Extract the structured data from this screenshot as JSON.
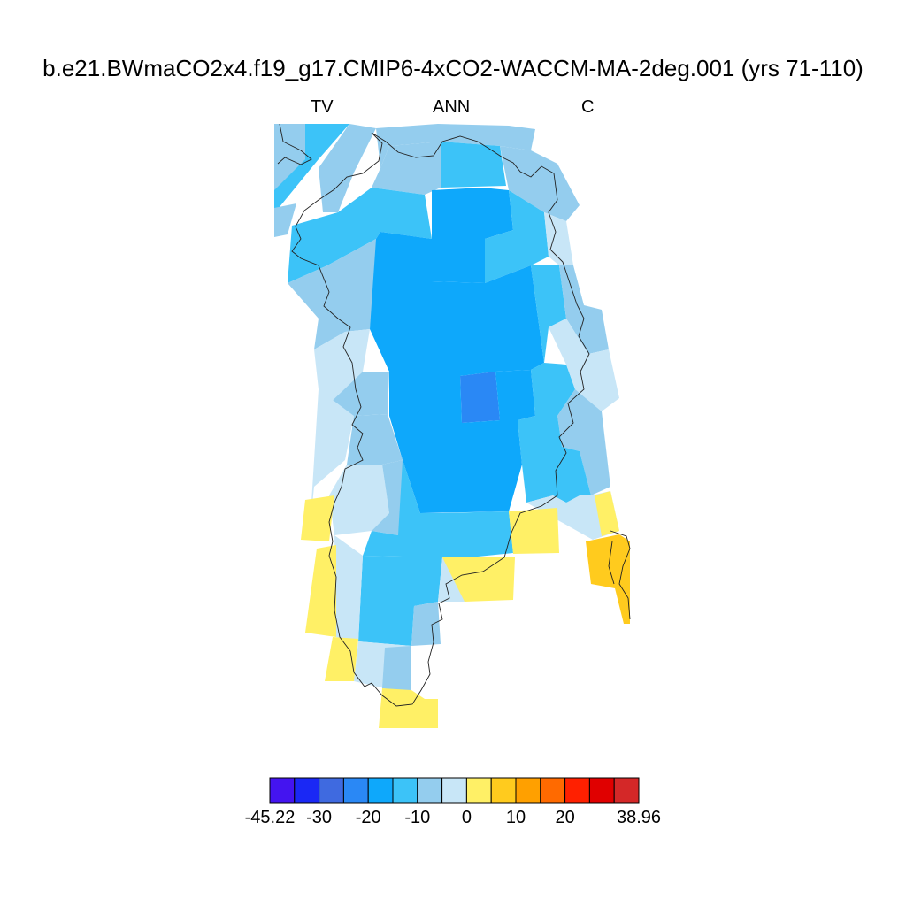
{
  "title": "b.e21.BWmaCO2x4.f19_g17.CMIP6-4xCO2-WACCM-MA-2deg.001 (yrs 71-110)",
  "left_label": "TV",
  "center_label": "ANN",
  "right_label": "C",
  "colorbar": {
    "colors": [
      "#4414f0",
      "#1a28f5",
      "#3f6ae0",
      "#2a88f5",
      "#0ea8fb",
      "#3cc3f8",
      "#94cdee",
      "#c8e6f7",
      "#fff066",
      "#ffcb1e",
      "#ffa000",
      "#ff6a00",
      "#ff2000",
      "#e00000",
      "#d42828"
    ],
    "labels": [
      "-45.22",
      "-30",
      "-20",
      "-10",
      "0",
      "10",
      "20",
      "38.96"
    ]
  },
  "legend_colors": {
    "le_minus20": "#2a88f5",
    "m20_m15": "#0ea8fb",
    "m15_m10": "#3cc3f8",
    "m10_m5": "#94cdee",
    "m5_0": "#c8e6f7",
    "z_5": "#fff066",
    "f5_10": "#ffcb1e"
  }
}
